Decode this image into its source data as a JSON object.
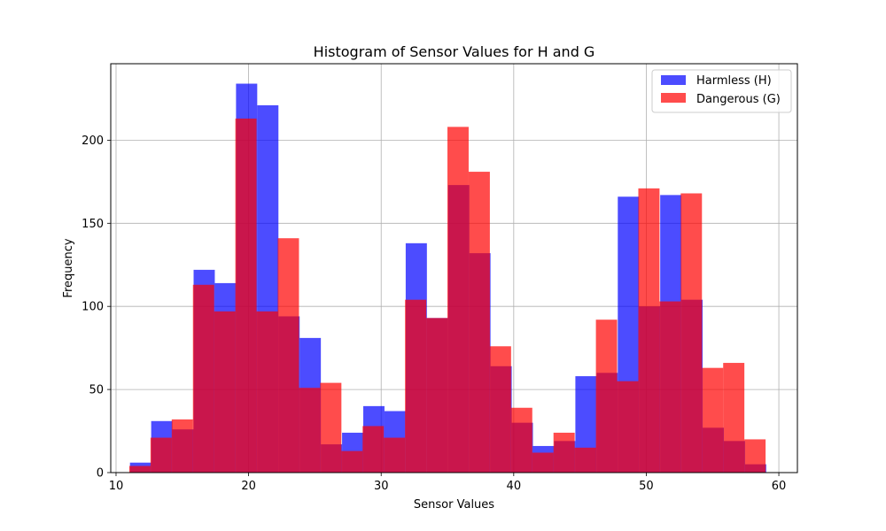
{
  "chart_data": {
    "type": "bar",
    "title": "Histogram of Sensor Values for H and G",
    "xlabel": "Sensor Values",
    "ylabel": "Frequency",
    "xlim": [
      9.6,
      61.4
    ],
    "ylim": [
      0,
      246
    ],
    "xticks": [
      10,
      20,
      30,
      40,
      50,
      60
    ],
    "yticks": [
      0,
      50,
      100,
      150,
      200
    ],
    "grid": true,
    "legend_position": "top-right",
    "series": [
      {
        "name": "Harmless (H)",
        "color": "#0000ff",
        "opacity": 0.7,
        "bins": [
          [
            11.05,
            12.65,
            6
          ],
          [
            12.65,
            14.25,
            31
          ],
          [
            14.25,
            15.85,
            26
          ],
          [
            15.85,
            17.45,
            122
          ],
          [
            17.45,
            19.05,
            114
          ],
          [
            19.05,
            20.65,
            234
          ],
          [
            20.65,
            22.25,
            221
          ],
          [
            22.25,
            23.85,
            94
          ],
          [
            23.85,
            25.45,
            81
          ],
          [
            25.45,
            27.05,
            17
          ],
          [
            27.05,
            28.65,
            24
          ],
          [
            28.65,
            30.25,
            40
          ],
          [
            30.25,
            31.85,
            37
          ],
          [
            31.85,
            33.45,
            138
          ],
          [
            33.45,
            35.05,
            93
          ],
          [
            35.05,
            36.65,
            173
          ],
          [
            36.65,
            38.25,
            132
          ],
          [
            38.25,
            39.85,
            64
          ],
          [
            39.85,
            41.45,
            30
          ],
          [
            41.45,
            43.05,
            16
          ],
          [
            43.05,
            44.65,
            19
          ],
          [
            44.65,
            46.25,
            58
          ],
          [
            46.25,
            47.85,
            60
          ],
          [
            47.85,
            49.45,
            166
          ],
          [
            49.45,
            51.05,
            100
          ],
          [
            51.05,
            52.65,
            167
          ],
          [
            52.65,
            54.25,
            104
          ],
          [
            54.25,
            55.85,
            27
          ],
          [
            55.85,
            57.45,
            19
          ],
          [
            57.45,
            59.05,
            5
          ]
        ]
      },
      {
        "name": "Dangerous (G)",
        "color": "#ff0000",
        "opacity": 0.7,
        "bins": [
          [
            11.0,
            12.6,
            4
          ],
          [
            12.6,
            14.2,
            21
          ],
          [
            14.2,
            15.8,
            32
          ],
          [
            15.8,
            17.4,
            113
          ],
          [
            17.4,
            19.0,
            97
          ],
          [
            19.0,
            20.6,
            213
          ],
          [
            20.6,
            22.2,
            97
          ],
          [
            22.2,
            23.8,
            141
          ],
          [
            23.8,
            25.4,
            51
          ],
          [
            25.4,
            27.0,
            54
          ],
          [
            27.0,
            28.6,
            13
          ],
          [
            28.6,
            30.2,
            28
          ],
          [
            30.2,
            31.8,
            21
          ],
          [
            31.8,
            33.4,
            104
          ],
          [
            33.4,
            35.0,
            93
          ],
          [
            35.0,
            36.6,
            208
          ],
          [
            36.6,
            38.2,
            181
          ],
          [
            38.2,
            39.8,
            76
          ],
          [
            39.8,
            41.4,
            39
          ],
          [
            41.4,
            43.0,
            12
          ],
          [
            43.0,
            44.6,
            24
          ],
          [
            44.6,
            46.2,
            15
          ],
          [
            46.2,
            47.8,
            92
          ],
          [
            47.8,
            49.4,
            55
          ],
          [
            49.4,
            51.0,
            171
          ],
          [
            51.0,
            52.6,
            103
          ],
          [
            52.6,
            54.2,
            168
          ],
          [
            54.2,
            55.8,
            63
          ],
          [
            55.8,
            57.4,
            66
          ],
          [
            57.4,
            59.0,
            20
          ]
        ]
      }
    ]
  }
}
